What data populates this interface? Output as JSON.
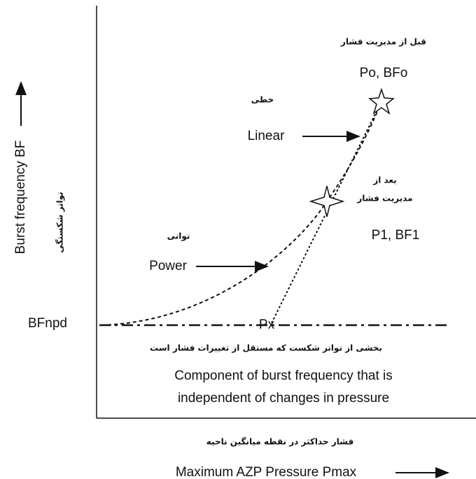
{
  "labels": {
    "before_fa": "قبل از مدیریت فشار",
    "point0": "Po, BFo",
    "linear_fa": "خطی",
    "linear": "Linear",
    "after_fa_1": "بعد از",
    "after_fa_2": "مدیریت فشار",
    "point1": "P1, BF1",
    "power_fa": "توانی",
    "power": "Power",
    "bfnpd": "BFnpd",
    "px": "Px",
    "component_fa": "بخشی از تواتر شکست که مستقل از تغییرات فشار است",
    "component_1": "Component of burst frequency that is",
    "component_2": "independent of changes in pressure",
    "x_axis_fa": "فشار حداکثر در نقطه میانگین ناحیه",
    "x_axis": "Maximum AZP Pressure Pmax",
    "y_axis": "Burst frequency BF",
    "y_axis_fa": "تواتر شکستگی"
  }
}
